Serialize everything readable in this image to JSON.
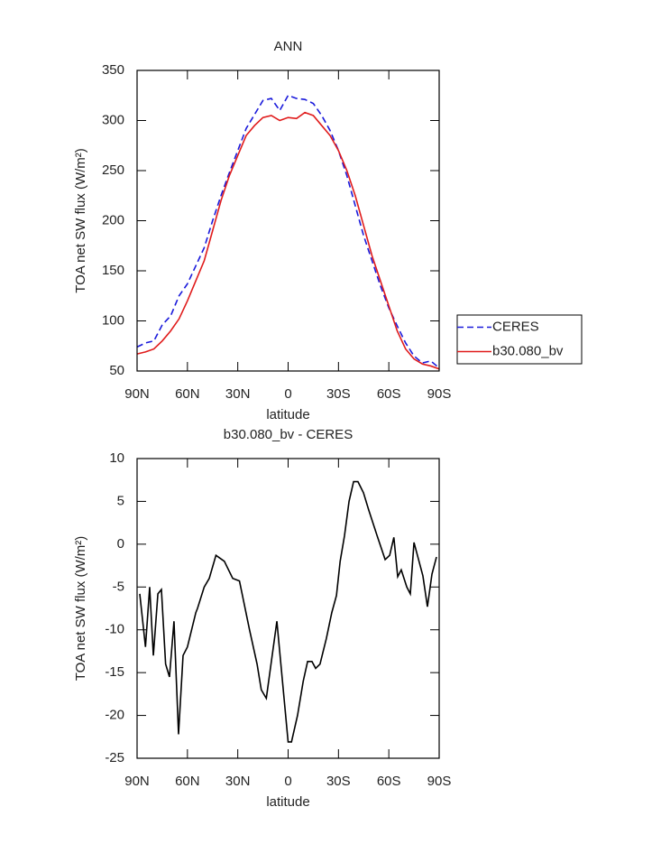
{
  "chart_data": [
    {
      "type": "line",
      "title": "ANN",
      "xlabel": "latitude",
      "ylabel": "TOA net SW flux (W/m²)",
      "x": [
        90,
        85,
        80,
        75,
        70,
        65,
        60,
        55,
        50,
        45,
        40,
        35,
        30,
        25,
        20,
        15,
        10,
        5,
        0,
        -5,
        -10,
        -15,
        -20,
        -25,
        -30,
        -35,
        -40,
        -45,
        -50,
        -55,
        -60,
        -65,
        -70,
        -75,
        -80,
        -85,
        -90
      ],
      "series": [
        {
          "name": "CERES",
          "color": "#1a1adb",
          "dash": true,
          "values": [
            74,
            78,
            80,
            96,
            105,
            125,
            137,
            155,
            173,
            200,
            225,
            248,
            270,
            292,
            306,
            320,
            322,
            310,
            325,
            322,
            321,
            317,
            305,
            290,
            270,
            245,
            215,
            185,
            160,
            135,
            113,
            95,
            78,
            65,
            58,
            60,
            53
          ]
        },
        {
          "name": "b30.080_bv",
          "color": "#e01b1b",
          "dash": false,
          "values": [
            67,
            69,
            72,
            80,
            90,
            102,
            120,
            140,
            160,
            190,
            220,
            245,
            265,
            285,
            295,
            303,
            305,
            300,
            303,
            302,
            308,
            305,
            295,
            285,
            270,
            250,
            225,
            195,
            165,
            140,
            115,
            90,
            72,
            62,
            57,
            55,
            52
          ]
        }
      ],
      "xlim": [
        90,
        -90
      ],
      "xticks": [
        {
          "value": 90,
          "label": "90N"
        },
        {
          "value": 60,
          "label": "60N"
        },
        {
          "value": 30,
          "label": "30N"
        },
        0,
        {
          "value": -30,
          "label": "30S"
        },
        {
          "value": -60,
          "label": "60S"
        },
        {
          "value": -90,
          "label": "90S"
        }
      ],
      "ylim": [
        50,
        350
      ],
      "yticks": [
        50,
        100,
        150,
        200,
        250,
        300,
        350
      ],
      "legend_position": "right"
    },
    {
      "type": "line",
      "title": "b30.080_bv - CERES",
      "xlabel": "latitude",
      "ylabel": "TOA net SW flux (W/m²)",
      "x": [
        88.4,
        85,
        82.5,
        80.3,
        77.6,
        75.5,
        73,
        70.7,
        68,
        65.3,
        62.6,
        60,
        55,
        54,
        50,
        47,
        43,
        38,
        33,
        29,
        23,
        18.5,
        16,
        13,
        6.7,
        0,
        -2,
        -5.6,
        -9,
        -11.6,
        -14.2,
        -16.4,
        -19,
        -22.8,
        -26,
        -28.8,
        -31,
        -33.6,
        -36.3,
        -39,
        -41.6,
        -44.9,
        -48,
        -53,
        -57.8,
        -60.5,
        -63,
        -65.3,
        -67.4,
        -70.7,
        -72.8,
        -75,
        -80.3,
        -83,
        -85.7,
        -88.4
      ],
      "series": [
        {
          "name": "b30.080_bv - CERES",
          "color": "#000000",
          "dash": false,
          "values": [
            -5.8,
            -12,
            -5,
            -13,
            -5.8,
            -5.3,
            -14,
            -15.5,
            -9,
            -22.2,
            -13,
            -12,
            -8,
            -7.5,
            -5,
            -4,
            -1.3,
            -2,
            -4,
            -4.3,
            -10,
            -14,
            -17,
            -18,
            -9,
            -23.1,
            -23.1,
            -20,
            -16,
            -13.7,
            -13.7,
            -14.5,
            -14,
            -11,
            -8,
            -6,
            -2,
            1,
            5,
            7.3,
            7.3,
            6,
            4,
            1,
            -1.8,
            -1.3,
            0.8,
            -3.8,
            -3,
            -5,
            -5.8,
            0.2,
            -3.7,
            -7.3,
            -3.5,
            -1.5
          ]
        }
      ],
      "xlim": [
        90,
        -90
      ],
      "xticks": [
        {
          "value": 90,
          "label": "90N"
        },
        {
          "value": 60,
          "label": "60N"
        },
        {
          "value": 30,
          "label": "30N"
        },
        0,
        {
          "value": -30,
          "label": "30S"
        },
        {
          "value": -60,
          "label": "60S"
        },
        {
          "value": -90,
          "label": "90S"
        }
      ],
      "ylim": [
        -25,
        10
      ],
      "yticks": [
        -25,
        -20,
        -15,
        -10,
        -5,
        0,
        5,
        10
      ]
    }
  ]
}
